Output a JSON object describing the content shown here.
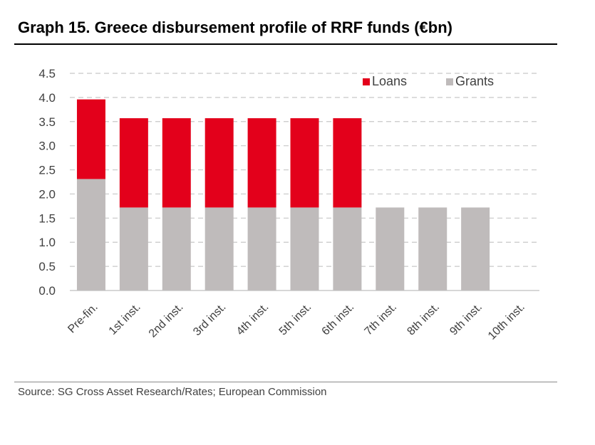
{
  "title": "Graph 15. Greece disbursement profile of RRF funds (€bn)",
  "source": "Source: SG Cross Asset Research/Rates; European Commission",
  "colors": {
    "loans": "#E3001B",
    "grants": "#BFBBBB",
    "grid": "#C8C8C8",
    "axis": "#BFBFBF",
    "text": "#404040"
  },
  "chart_data": {
    "type": "bar",
    "stacked": true,
    "categories": [
      "Pre-fin.",
      "1st inst.",
      "2nd inst.",
      "3rd inst.",
      "4th inst.",
      "5th inst.",
      "6th inst.",
      "7th inst.",
      "8th inst.",
      "9th inst.",
      "10th inst."
    ],
    "series": [
      {
        "name": "Grants",
        "color": "#BFBBBB",
        "values": [
          2.31,
          1.72,
          1.72,
          1.72,
          1.72,
          1.72,
          1.72,
          1.72,
          1.72,
          1.72,
          0
        ]
      },
      {
        "name": "Loans",
        "color": "#E3001B",
        "values": [
          1.65,
          1.85,
          1.85,
          1.85,
          1.85,
          1.85,
          1.85,
          0,
          0,
          0,
          0
        ]
      }
    ],
    "legend_order": [
      "Loans",
      "Grants"
    ],
    "yticks": [
      "0.0",
      "0.5",
      "1.0",
      "1.5",
      "2.0",
      "2.5",
      "3.0",
      "3.5",
      "4.0",
      "4.5"
    ],
    "ylim": [
      0,
      4.5
    ],
    "grid": "dashed horizontal",
    "legend": "top-right"
  }
}
